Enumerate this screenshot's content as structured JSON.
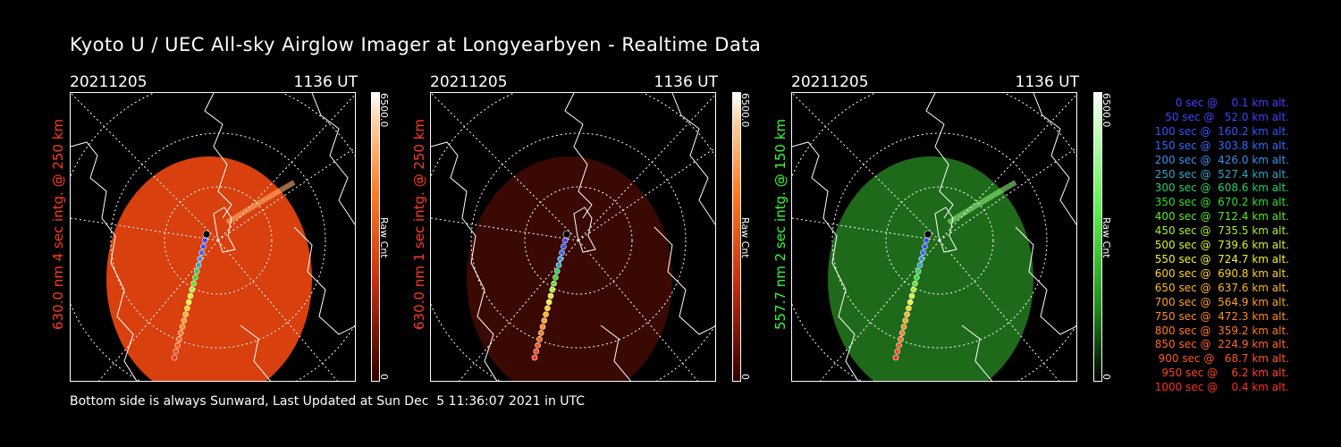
{
  "title": "Kyoto U / UEC All-sky Airglow Imager at Longyearbyen - Realtime Data",
  "footer": "Bottom side is always Sunward, Last Updated at Sun Dec  5 11:36:07 2021 in UTC",
  "panels": [
    {
      "date": "20211205",
      "time": "1136 UT",
      "side_label": "630.0 nm 4 sec intg. @ 250 km",
      "label_color": "#ff3b1f",
      "colorbar_max": "6500.0",
      "colorbar_min": "0",
      "colorbar_unit": "Raw Cnt",
      "colormap": "red",
      "image_fill": "#d8400e",
      "brightness": 0.85
    },
    {
      "date": "20211205",
      "time": "1136 UT",
      "side_label": "630.0 nm 1 sec intg. @ 250 km",
      "label_color": "#ff3b1f",
      "colorbar_max": "6500.0",
      "colorbar_min": "0",
      "colorbar_unit": "Raw Cnt",
      "colormap": "red",
      "image_fill": "#3a0904",
      "brightness": 0.25
    },
    {
      "date": "20211205",
      "time": "1136 UT",
      "side_label": "557.7 nm 2 sec intg. @ 150 km",
      "label_color": "#30ff30",
      "colorbar_max": "6500.0",
      "colorbar_min": "0",
      "colorbar_unit": "Raw Cnt",
      "colormap": "green",
      "image_fill": "#1f6a1a",
      "brightness": 0.45
    }
  ],
  "legend": [
    {
      "text": "0 sec @    0.1 km alt.",
      "color": "#4a3cff"
    },
    {
      "text": "50 sec @   52.0 km alt.",
      "color": "#3a44ff"
    },
    {
      "text": "100 sec @  160.2 km alt.",
      "color": "#2f55ff"
    },
    {
      "text": "150 sec @  303.8 km alt.",
      "color": "#2c6cff"
    },
    {
      "text": "200 sec @  426.0 km alt.",
      "color": "#3b90e8"
    },
    {
      "text": "250 sec @  527.4 km alt.",
      "color": "#2aa8c8"
    },
    {
      "text": "300 sec @  608.6 km alt.",
      "color": "#22d06a"
    },
    {
      "text": "350 sec @  670.2 km alt.",
      "color": "#2ee02a"
    },
    {
      "text": "400 sec @  712.4 km alt.",
      "color": "#5ce82a"
    },
    {
      "text": "450 sec @  735.5 km alt.",
      "color": "#a8f030"
    },
    {
      "text": "500 sec @  739.6 km alt.",
      "color": "#d8f030"
    },
    {
      "text": "550 sec @  724.7 km alt.",
      "color": "#f4f030"
    },
    {
      "text": "600 sec @  690.8 km alt.",
      "color": "#ffd21e"
    },
    {
      "text": "650 sec @  637.6 km alt.",
      "color": "#ffb81e"
    },
    {
      "text": "700 sec @  564.9 km alt.",
      "color": "#ffa01e"
    },
    {
      "text": "750 sec @  472.3 km alt.",
      "color": "#ff8c1e"
    },
    {
      "text": "800 sec @  359.2 km alt.",
      "color": "#ff7a1e"
    },
    {
      "text": "850 sec @  224.9 km alt.",
      "color": "#ff681e"
    },
    {
      "text": "900 sec @   68.7 km alt.",
      "color": "#ff561e"
    },
    {
      "text": "950 sec @    6.2 km alt.",
      "color": "#ff441e"
    },
    {
      "text": "1000 sec @    0.4 km alt.",
      "color": "#ff321e"
    }
  ]
}
